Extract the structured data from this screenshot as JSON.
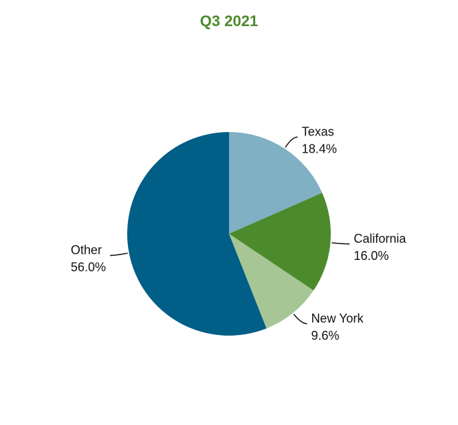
{
  "chart_data": {
    "type": "pie",
    "title": "Q3 2021",
    "categories": [
      "Texas",
      "California",
      "New York",
      "Other"
    ],
    "values": [
      18.4,
      16.0,
      9.6,
      56.0
    ],
    "value_labels": [
      "18.4%",
      "16.0%",
      "9.6%",
      "56.0%"
    ],
    "colors": [
      "#7fb0c4",
      "#4c8a2c",
      "#a6c795",
      "#005e87"
    ]
  }
}
